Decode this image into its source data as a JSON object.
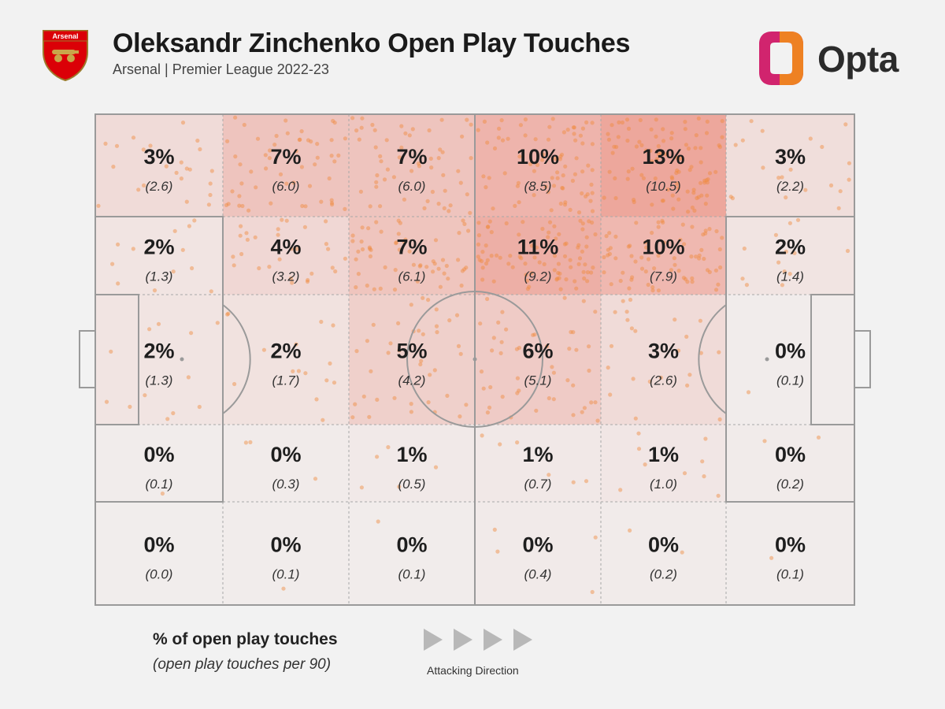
{
  "header": {
    "title": "Oleksandr Zinchenko Open Play Touches",
    "subtitle": "Arsenal | Premier League 2022-23",
    "club_crest_text": "Arsenal",
    "brand": "Opta"
  },
  "legend": {
    "title": "% of open play touches",
    "subtitle": "(open play touches per 90)",
    "direction_label": "Attacking Direction"
  },
  "colors": {
    "background": "#f2f2f2",
    "pitch_lines": "#9a9a9a",
    "heat": "#e8553f",
    "dots": "#f08a3c",
    "crest_red": "#db0007",
    "brand_magenta": "#d1246e",
    "brand_orange": "#f08a1c"
  },
  "chart_data": {
    "type": "heatmap",
    "title": "Oleksandr Zinchenko Open Play Touches",
    "subtitle": "Arsenal | Premier League 2022-23",
    "columns": 6,
    "rows": 5,
    "row_order": "top to bottom",
    "column_order": "left to right (attacking direction)",
    "percent": [
      [
        "3%",
        "7%",
        "7%",
        "10%",
        "13%",
        "3%"
      ],
      [
        "2%",
        "4%",
        "7%",
        "11%",
        "10%",
        "2%"
      ],
      [
        "2%",
        "2%",
        "5%",
        "6%",
        "3%",
        "0%"
      ],
      [
        "0%",
        "0%",
        "1%",
        "1%",
        "1%",
        "0%"
      ],
      [
        "0%",
        "0%",
        "0%",
        "0%",
        "0%",
        "0%"
      ]
    ],
    "per90": [
      [
        "(2.6)",
        "(6.0)",
        "(6.0)",
        "(8.5)",
        "(10.5)",
        "(2.2)"
      ],
      [
        "(1.3)",
        "(3.2)",
        "(6.1)",
        "(9.2)",
        "(7.9)",
        "(1.4)"
      ],
      [
        "(1.3)",
        "(1.7)",
        "(4.2)",
        "(5.1)",
        "(2.6)",
        "(0.1)"
      ],
      [
        "(0.1)",
        "(0.3)",
        "(0.5)",
        "(0.7)",
        "(1.0)",
        "(0.2)"
      ],
      [
        "(0.0)",
        "(0.1)",
        "(0.1)",
        "(0.4)",
        "(0.2)",
        "(0.1)"
      ]
    ],
    "per90_values": [
      [
        2.6,
        6.0,
        6.0,
        8.5,
        10.5,
        2.2
      ],
      [
        1.3,
        3.2,
        6.1,
        9.2,
        7.9,
        1.4
      ],
      [
        1.3,
        1.7,
        4.2,
        5.1,
        2.6,
        0.1
      ],
      [
        0.1,
        0.3,
        0.5,
        0.7,
        1.0,
        0.2
      ],
      [
        0.0,
        0.1,
        0.1,
        0.4,
        0.2,
        0.1
      ]
    ]
  }
}
